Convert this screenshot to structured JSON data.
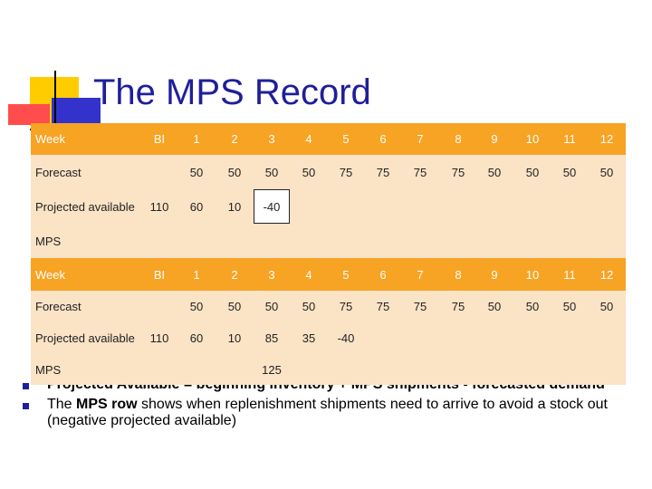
{
  "slide": {
    "title": "The MPS Record",
    "bullets": [
      {
        "parts": [
          {
            "text": "Projected Available = beginning inventory + MPS shipments - forecasted demand",
            "bold": true
          }
        ]
      },
      {
        "parts": [
          {
            "text": "The ",
            "bold": false
          },
          {
            "text": "MPS row",
            "bold": true
          },
          {
            "text": " shows when replenishment shipments need to arrive to avoid a stock out (negative projected available)",
            "bold": false
          }
        ]
      }
    ]
  },
  "colors": {
    "header_orange": "#f7a324",
    "table_bg": "#fbe3c6",
    "title_blue": "#1f1f99"
  },
  "tables": [
    {
      "header": [
        "Week",
        "BI",
        "1",
        "2",
        "3",
        "4",
        "5",
        "6",
        "7",
        "8",
        "9",
        "10",
        "11",
        "12"
      ],
      "rows": [
        {
          "label": "Forecast",
          "cells": [
            "",
            "50",
            "50",
            "50",
            "50",
            "75",
            "75",
            "75",
            "75",
            "50",
            "50",
            "50",
            "50"
          ]
        },
        {
          "label": "Projected available",
          "cells": [
            "110",
            "60",
            "10",
            "-40",
            "",
            "",
            "",
            "",
            "",
            "",
            "",
            "",
            ""
          ]
        },
        {
          "label": "MPS",
          "cells": [
            "",
            "",
            "",
            "",
            "",
            "",
            "",
            "",
            "",
            "",
            "",
            "",
            ""
          ]
        }
      ]
    },
    {
      "header": [
        "Week",
        "BI",
        "1",
        "2",
        "3",
        "4",
        "5",
        "6",
        "7",
        "8",
        "9",
        "10",
        "11",
        "12"
      ],
      "rows": [
        {
          "label": "Forecast",
          "cells": [
            "",
            "50",
            "50",
            "50",
            "50",
            "75",
            "75",
            "75",
            "75",
            "50",
            "50",
            "50",
            "50"
          ]
        },
        {
          "label": "Projected available",
          "cells": [
            "110",
            "60",
            "10",
            "85",
            "35",
            "-40",
            "",
            "",
            "",
            "",
            "",
            "",
            ""
          ]
        },
        {
          "label": "MPS",
          "cells": [
            "",
            "",
            "",
            "125",
            "",
            "",
            "",
            "",
            "",
            "",
            "",
            "",
            ""
          ]
        }
      ]
    }
  ]
}
